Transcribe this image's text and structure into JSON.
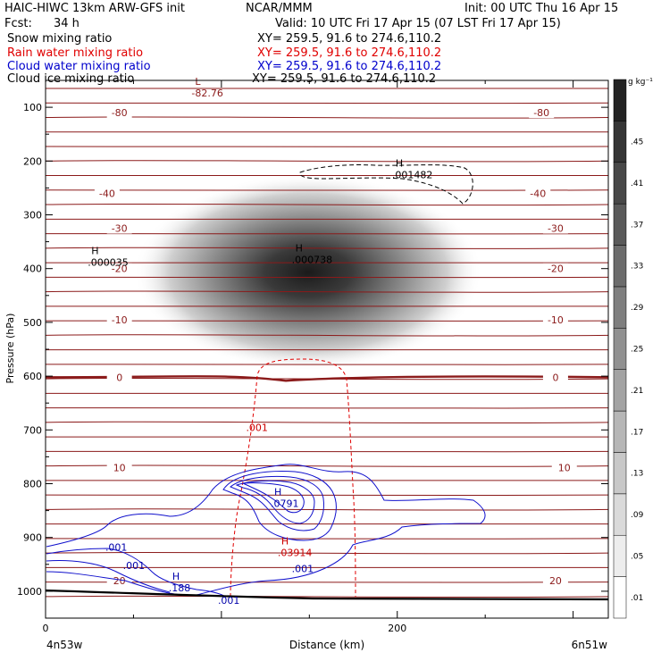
{
  "header": {
    "title": "HAIC-HIWC 13km ARW-GFS init",
    "org": "NCAR/MMM",
    "init": "Init: 00 UTC Thu 16 Apr 15",
    "fcst_label": "Fcst:",
    "fcst_value": "34 h",
    "valid": "Valid: 10 UTC Fri 17 Apr 15 (07 LST Fri 17 Apr 15)",
    "fields": [
      {
        "name": "Snow mixing ratio",
        "xy": "XY= 259.5, 91.6 to 274.6,110.2",
        "color": "#000000"
      },
      {
        "name": "Rain water mixing ratio",
        "xy": "XY= 259.5, 91.6 to 274.6,110.2",
        "color": "#e00000"
      },
      {
        "name": "Cloud water mixing ratio",
        "xy": "XY= 259.5, 91.6 to 274.6,110.2",
        "color": "#0000cc"
      },
      {
        "name": "Cloud ice mixing ratio",
        "xy": "XY= 259.5, 91.6 to 274.6,110.2",
        "color": "#000000"
      }
    ]
  },
  "chart_data": {
    "type": "contour",
    "xlabel": "Distance (km)",
    "ylabel": "Pressure (hPa)",
    "xlim": [
      0,
      320
    ],
    "ylim": [
      1050,
      50
    ],
    "x_ticks": [
      0,
      200
    ],
    "y_ticks": [
      100,
      200,
      300,
      400,
      500,
      600,
      700,
      800,
      900,
      1000
    ],
    "x_endpoints": [
      "4n53w",
      "6n51w"
    ],
    "colorbar": {
      "unit": "g kg⁻¹",
      "levels": [
        0.01,
        0.05,
        0.09,
        0.13,
        0.17,
        0.21,
        0.25,
        0.29,
        0.33,
        0.37,
        0.41,
        0.45
      ]
    },
    "snow_max": {
      "x": 145,
      "p": 400,
      "value": 0.45
    },
    "temperature_isotherms": [
      {
        "label": "-80",
        "p": 110,
        "label_x_left": 42,
        "label_x_right": 282
      },
      {
        "label": "-40",
        "p": 260,
        "label_x_left": 35,
        "label_x_right": 280
      },
      {
        "label": "-30",
        "p": 325,
        "label_x_left": 42,
        "label_x_right": 290
      },
      {
        "label": "-20",
        "p": 400,
        "label_x_left": 42,
        "label_x_right": 290
      },
      {
        "label": "-10",
        "p": 495,
        "label_x_left": 42,
        "label_x_right": 290
      },
      {
        "label": "0",
        "p": 602,
        "label_x_left": 42,
        "label_x_right": 290
      },
      {
        "label": "10",
        "p": 770,
        "label_x_left": 42,
        "label_x_right": 295
      },
      {
        "label": "20",
        "p": 980,
        "label_x_left": 42,
        "label_x_right": 290
      }
    ],
    "annotations": [
      {
        "mark": "L",
        "value": "-82.76",
        "x": 83,
        "p": 65,
        "color": "#8b1a1a"
      },
      {
        "mark": "H",
        "value": ".001482",
        "x": 197,
        "p": 217,
        "color": "#000000"
      },
      {
        "mark": "H",
        "value": ".000035",
        "x": 24,
        "p": 380,
        "color": "#000000"
      },
      {
        "mark": "H",
        "value": ".000738",
        "x": 140,
        "p": 375,
        "color": "#000000"
      },
      {
        "mark": "",
        "value": ".001",
        "x": 114,
        "p": 695,
        "color": "#cc0000"
      },
      {
        "mark": "H",
        "value": ".0791",
        "x": 128,
        "p": 828,
        "color": "#0000aa"
      },
      {
        "mark": "H",
        "value": ".03914",
        "x": 132,
        "p": 920,
        "color": "#cc0000"
      },
      {
        "mark": "",
        "value": ".001",
        "x": 34,
        "p": 918,
        "color": "#0000aa"
      },
      {
        "mark": "",
        "value": ".001",
        "x": 44,
        "p": 952,
        "color": "#0000aa"
      },
      {
        "mark": "",
        "value": ".001",
        "x": 140,
        "p": 958,
        "color": "#0000aa"
      },
      {
        "mark": "H",
        "value": ".188",
        "x": 70,
        "p": 985,
        "color": "#0000aa"
      },
      {
        "mark": "",
        "value": ".001",
        "x": 98,
        "p": 1017,
        "color": "#0000aa"
      }
    ]
  }
}
